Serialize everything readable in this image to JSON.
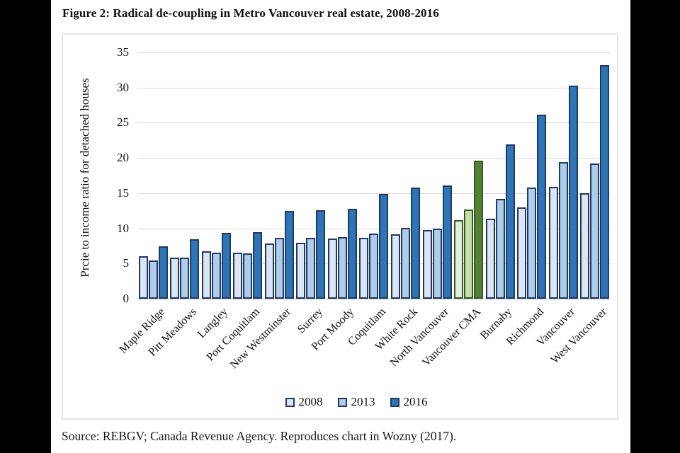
{
  "figure_title": "Figure 2: Radical de-coupling in Metro Vancouver real estate, 2008-2016",
  "source_note": "Source: REBGV; Canada Revenue Agency. Reproduces chart in Wozny (2017).",
  "chart_data": {
    "type": "bar",
    "title": "Figure 2: Radical de-coupling in Metro Vancouver real estate, 2008-2016",
    "xlabel": "",
    "ylabel": "Prcie to income ratio for detached houses",
    "ylim": [
      0,
      35
    ],
    "ytick_interval": 5,
    "grid": true,
    "legend_position": "bottom",
    "categories": [
      "Maple Ridge",
      "Pitt Meadows",
      "Langley",
      "Port Coquitlam",
      "New Westminster",
      "Surrey",
      "Port Moody",
      "Coquitlam",
      "White Rock",
      "North Vancouver",
      "Vancouver CMA",
      "Burnaby",
      "Richmond",
      "Vancouver",
      "West Vancouver"
    ],
    "series": [
      {
        "name": "2008",
        "color": "#dce6f2",
        "border": "#1f3864",
        "values": [
          6.0,
          5.8,
          6.7,
          6.5,
          7.8,
          7.9,
          8.5,
          8.6,
          9.2,
          9.8,
          11.2,
          11.4,
          13.0,
          15.9,
          15.0
        ]
      },
      {
        "name": "2013",
        "color": "#aecde9",
        "border": "#1f3864",
        "values": [
          5.4,
          5.8,
          6.5,
          6.4,
          8.6,
          8.6,
          8.7,
          9.3,
          10.1,
          10.0,
          12.7,
          14.2,
          15.8,
          19.4,
          19.2
        ]
      },
      {
        "name": "2016",
        "color": "#2e75b6",
        "border": "#1f3864",
        "values": [
          7.4,
          8.4,
          9.4,
          9.5,
          12.5,
          12.6,
          12.8,
          14.9,
          15.8,
          16.1,
          19.6,
          21.9,
          26.1,
          30.3,
          33.2
        ]
      }
    ],
    "highlight": {
      "category": "Vancouver CMA",
      "colors": [
        "#e2efda",
        "#c5dda7",
        "#548235"
      ],
      "border": "#3a5822"
    },
    "colors": {
      "gridline": "#d9d9d9",
      "axisline": "#b3b3b3",
      "background": "#ffffff"
    }
  }
}
